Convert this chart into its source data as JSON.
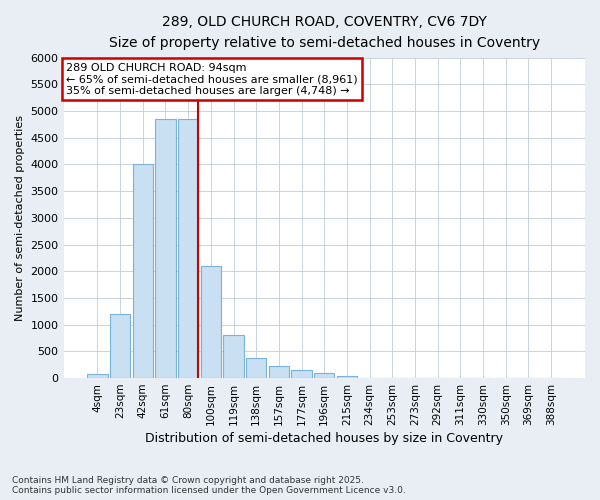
{
  "title_line1": "289, OLD CHURCH ROAD, COVENTRY, CV6 7DY",
  "title_line2": "Size of property relative to semi-detached houses in Coventry",
  "xlabel": "Distribution of semi-detached houses by size in Coventry",
  "ylabel": "Number of semi-detached properties",
  "categories": [
    "4sqm",
    "23sqm",
    "42sqm",
    "61sqm",
    "80sqm",
    "100sqm",
    "119sqm",
    "138sqm",
    "157sqm",
    "177sqm",
    "196sqm",
    "215sqm",
    "234sqm",
    "253sqm",
    "273sqm",
    "292sqm",
    "311sqm",
    "330sqm",
    "350sqm",
    "369sqm",
    "388sqm"
  ],
  "values": [
    80,
    1200,
    4000,
    4850,
    4850,
    2100,
    800,
    370,
    230,
    150,
    90,
    30,
    8,
    2,
    0,
    0,
    0,
    0,
    0,
    0,
    0
  ],
  "bar_color": "#c9dff2",
  "bar_edge_color": "#7ab3d8",
  "vline_color": "#cc0000",
  "vline_x_index": 4,
  "annotation_title": "289 OLD CHURCH ROAD: 94sqm",
  "annotation_line2": "← 65% of semi-detached houses are smaller (8,961)",
  "annotation_line3": "35% of semi-detached houses are larger (4,748) →",
  "annotation_box_color": "#cc0000",
  "ylim": [
    0,
    6000
  ],
  "yticks": [
    0,
    500,
    1000,
    1500,
    2000,
    2500,
    3000,
    3500,
    4000,
    4500,
    5000,
    5500,
    6000
  ],
  "footnote1": "Contains HM Land Registry data © Crown copyright and database right 2025.",
  "footnote2": "Contains public sector information licensed under the Open Government Licence v3.0.",
  "background_color": "#e8eef4",
  "plot_background_color": "#ffffff",
  "grid_color": "#c0cdd8"
}
